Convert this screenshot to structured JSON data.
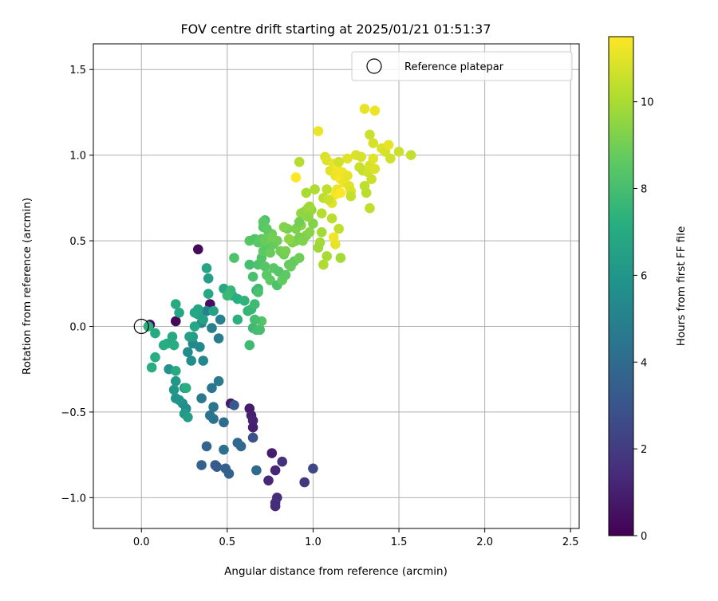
{
  "chart_data": {
    "type": "scatter",
    "title": "FOV centre drift starting at 2025/01/21 01:51:37",
    "xlabel": "Angular distance from reference (arcmin)",
    "ylabel": "Rotation from reference (arcmin)",
    "xlim": [
      -0.28,
      2.55
    ],
    "ylim": [
      -1.18,
      1.65
    ],
    "xticks": [
      0.0,
      0.5,
      1.0,
      1.5,
      2.0,
      2.5
    ],
    "xtick_labels": [
      "0.0",
      "0.5",
      "1.0",
      "1.5",
      "2.0",
      "2.5"
    ],
    "yticks": [
      -1.0,
      -0.5,
      0.0,
      0.5,
      1.0,
      1.5
    ],
    "ytick_labels": [
      "−1.0",
      "−0.5",
      "0.0",
      "0.5",
      "1.0",
      "1.5"
    ],
    "grid": true,
    "legend": {
      "placement": "top-right",
      "entries": [
        {
          "label": "Reference platepar",
          "marker": "open-circle"
        }
      ]
    },
    "colorbar": {
      "label": "Hours from first FF file",
      "colormap": "viridis",
      "range": [
        0,
        11.5
      ],
      "ticks": [
        0,
        2,
        4,
        6,
        8,
        10
      ],
      "tick_labels": [
        "0",
        "2",
        "4",
        "6",
        "8",
        "10"
      ]
    },
    "reference_point": {
      "x": 0.0,
      "y": 0.0
    },
    "series": [
      {
        "columns": [
          "x",
          "y",
          "hours"
        ],
        "points": [
          [
            0.2,
            0.03,
            0.2
          ],
          [
            0.33,
            0.45,
            0.3
          ],
          [
            0.4,
            0.13,
            0.5
          ],
          [
            0.05,
            0.01,
            0.4
          ],
          [
            0.52,
            -0.45,
            0.8
          ],
          [
            0.63,
            -0.48,
            0.9
          ],
          [
            0.64,
            -0.52,
            1.0
          ],
          [
            0.65,
            -0.55,
            1.1
          ],
          [
            0.65,
            -0.59,
            1.0
          ],
          [
            0.76,
            -0.74,
            0.9
          ],
          [
            0.78,
            -0.84,
            1.2
          ],
          [
            0.74,
            -0.9,
            1.3
          ],
          [
            0.79,
            -1.0,
            1.4
          ],
          [
            0.78,
            -1.03,
            1.5
          ],
          [
            0.78,
            -1.05,
            1.4
          ],
          [
            0.82,
            -0.79,
            1.6
          ],
          [
            0.95,
            -0.91,
            1.8
          ],
          [
            1.0,
            -0.83,
            2.5
          ],
          [
            0.65,
            -0.65,
            2.8
          ],
          [
            0.54,
            -0.46,
            3.2
          ],
          [
            0.51,
            -0.86,
            3.6
          ],
          [
            0.49,
            -0.83,
            3.5
          ],
          [
            0.43,
            -0.81,
            3.4
          ],
          [
            0.44,
            -0.82,
            3.3
          ],
          [
            0.35,
            -0.81,
            3.6
          ],
          [
            0.38,
            -0.7,
            3.7
          ],
          [
            0.56,
            -0.68,
            3.8
          ],
          [
            0.58,
            -0.7,
            3.9
          ],
          [
            0.67,
            -0.84,
            4.0
          ],
          [
            0.48,
            -0.72,
            4.2
          ],
          [
            0.48,
            -0.56,
            4.1
          ],
          [
            0.42,
            -0.54,
            4.3
          ],
          [
            0.4,
            -0.52,
            4.4
          ],
          [
            0.42,
            -0.47,
            4.5
          ],
          [
            0.35,
            -0.42,
            4.6
          ],
          [
            0.41,
            -0.36,
            4.5
          ],
          [
            0.45,
            -0.32,
            4.7
          ],
          [
            0.45,
            -0.07,
            4.8
          ],
          [
            0.46,
            0.04,
            4.9
          ],
          [
            0.41,
            -0.01,
            5.0
          ],
          [
            0.38,
            0.09,
            5.1
          ],
          [
            0.35,
            0.02,
            5.2
          ],
          [
            0.36,
            -0.2,
            5.3
          ],
          [
            0.34,
            -0.12,
            5.3
          ],
          [
            0.3,
            -0.1,
            5.4
          ],
          [
            0.27,
            -0.15,
            5.5
          ],
          [
            0.29,
            -0.2,
            5.6
          ],
          [
            0.26,
            -0.48,
            5.6
          ],
          [
            0.24,
            -0.45,
            5.7
          ],
          [
            0.2,
            -0.42,
            5.8
          ],
          [
            0.22,
            -0.43,
            5.9
          ],
          [
            0.16,
            -0.25,
            5.8
          ],
          [
            0.19,
            -0.37,
            6.0
          ],
          [
            0.2,
            -0.32,
            6.1
          ],
          [
            0.25,
            -0.51,
            6.2
          ],
          [
            0.27,
            -0.53,
            6.3
          ],
          [
            0.25,
            -0.36,
            6.2
          ],
          [
            0.3,
            -0.06,
            6.4
          ],
          [
            0.28,
            -0.06,
            6.5
          ],
          [
            0.33,
            0.07,
            6.6
          ],
          [
            0.36,
            0.04,
            6.5
          ],
          [
            0.33,
            0.1,
            6.7
          ],
          [
            0.31,
            0.08,
            6.8
          ],
          [
            0.31,
            0.0,
            6.8
          ],
          [
            0.39,
            0.28,
            6.4
          ],
          [
            0.38,
            0.34,
            6.7
          ],
          [
            0.39,
            0.19,
            6.9
          ],
          [
            0.42,
            0.09,
            6.6
          ],
          [
            0.22,
            0.08,
            6.8
          ],
          [
            0.2,
            0.13,
            7.0
          ],
          [
            0.18,
            -0.06,
            6.9
          ],
          [
            0.15,
            -0.1,
            7.0
          ],
          [
            0.19,
            -0.11,
            7.1
          ],
          [
            0.2,
            -0.26,
            7.0
          ],
          [
            0.13,
            -0.11,
            7.1
          ],
          [
            0.08,
            -0.04,
            7.0
          ],
          [
            0.08,
            -0.18,
            7.2
          ],
          [
            0.06,
            -0.24,
            7.1
          ],
          [
            0.04,
            0.0,
            7.3
          ],
          [
            0.26,
            -0.36,
            7.2
          ],
          [
            0.48,
            0.22,
            6.9
          ],
          [
            0.52,
            0.19,
            7.0
          ],
          [
            0.56,
            0.16,
            7.2
          ],
          [
            0.53,
            0.18,
            7.1
          ],
          [
            0.56,
            0.04,
            7.3
          ],
          [
            0.6,
            0.15,
            7.4
          ],
          [
            0.62,
            0.09,
            7.5
          ],
          [
            0.64,
            0.1,
            7.6
          ],
          [
            0.65,
            -0.01,
            7.7
          ],
          [
            0.63,
            -0.11,
            7.8
          ],
          [
            0.67,
            -0.02,
            7.9
          ],
          [
            0.69,
            -0.02,
            8.0
          ],
          [
            0.7,
            0.03,
            8.3
          ],
          [
            0.66,
            0.04,
            8.0
          ],
          [
            0.66,
            0.13,
            7.8
          ],
          [
            0.67,
            0.21,
            7.5
          ],
          [
            0.68,
            0.22,
            7.8
          ],
          [
            0.68,
            0.2,
            8.1
          ],
          [
            0.52,
            0.21,
            7.6
          ],
          [
            0.5,
            0.18,
            7.7
          ],
          [
            0.54,
            0.4,
            8.2
          ],
          [
            0.63,
            0.36,
            8.0
          ],
          [
            0.65,
            0.29,
            8.1
          ],
          [
            0.68,
            0.36,
            8.2
          ],
          [
            0.7,
            0.4,
            8.3
          ],
          [
            0.72,
            0.35,
            8.4
          ],
          [
            0.73,
            0.3,
            8.5
          ],
          [
            0.75,
            0.27,
            8.6
          ],
          [
            0.77,
            0.34,
            8.5
          ],
          [
            0.79,
            0.24,
            8.2
          ],
          [
            0.8,
            0.32,
            8.4
          ],
          [
            0.82,
            0.27,
            8.7
          ],
          [
            0.84,
            0.3,
            8.6
          ],
          [
            0.86,
            0.36,
            8.7
          ],
          [
            0.87,
            0.35,
            8.8
          ],
          [
            0.89,
            0.38,
            8.7
          ],
          [
            0.92,
            0.4,
            8.9
          ],
          [
            0.71,
            0.44,
            8.6
          ],
          [
            0.73,
            0.47,
            8.5
          ],
          [
            0.75,
            0.43,
            8.8
          ],
          [
            0.77,
            0.48,
            8.7
          ],
          [
            0.79,
            0.5,
            8.9
          ],
          [
            0.81,
            0.44,
            9.0
          ],
          [
            0.83,
            0.42,
            8.9
          ],
          [
            0.84,
            0.44,
            9.1
          ],
          [
            0.63,
            0.5,
            8.4
          ],
          [
            0.66,
            0.51,
            8.3
          ],
          [
            0.68,
            0.49,
            8.5
          ],
          [
            0.7,
            0.51,
            8.6
          ],
          [
            0.72,
            0.5,
            8.8
          ],
          [
            0.74,
            0.55,
            8.7
          ],
          [
            0.76,
            0.54,
            8.9
          ],
          [
            0.71,
            0.58,
            8.4
          ],
          [
            0.72,
            0.62,
            8.2
          ],
          [
            0.71,
            0.61,
            8.5
          ],
          [
            0.73,
            0.57,
            8.6
          ],
          [
            0.76,
            0.52,
            9.0
          ],
          [
            0.85,
            0.57,
            9.1
          ],
          [
            0.9,
            0.5,
            9.0
          ],
          [
            0.88,
            0.49,
            9.2
          ],
          [
            0.92,
            0.52,
            9.1
          ],
          [
            0.94,
            0.5,
            9.3
          ],
          [
            0.96,
            0.53,
            9.2
          ],
          [
            0.98,
            0.55,
            9.4
          ],
          [
            1.0,
            0.6,
            9.3
          ],
          [
            0.97,
            0.64,
            9.5
          ],
          [
            0.93,
            0.59,
            9.4
          ],
          [
            0.93,
            0.66,
            9.6
          ],
          [
            0.95,
            0.67,
            9.5
          ],
          [
            0.97,
            0.69,
            9.7
          ],
          [
            0.99,
            0.68,
            9.6
          ],
          [
            0.98,
            0.7,
            9.8
          ],
          [
            0.96,
            0.78,
            10.0
          ],
          [
            1.01,
            0.8,
            10.1
          ],
          [
            1.04,
            0.49,
            9.9
          ],
          [
            1.03,
            0.46,
            9.8
          ],
          [
            1.05,
            0.66,
            10.2
          ],
          [
            1.06,
            0.75,
            10.3
          ],
          [
            1.08,
            0.8,
            10.4
          ],
          [
            1.05,
            0.55,
            9.9
          ],
          [
            1.08,
            0.41,
            10.0
          ],
          [
            1.06,
            0.36,
            10.1
          ],
          [
            1.11,
            0.63,
            10.3
          ],
          [
            1.15,
            0.57,
            10.4
          ],
          [
            1.16,
            0.4,
            9.9
          ],
          [
            1.07,
            0.99,
            10.8
          ],
          [
            1.08,
            0.97,
            10.9
          ],
          [
            1.1,
            0.91,
            11.0
          ],
          [
            1.12,
            0.95,
            11.1
          ],
          [
            1.13,
            0.88,
            11.2
          ],
          [
            1.14,
            0.92,
            11.3
          ],
          [
            1.16,
            0.86,
            11.4
          ],
          [
            1.17,
            0.9,
            11.3
          ],
          [
            1.18,
            0.84,
            11.2
          ],
          [
            1.2,
            0.88,
            11.1
          ],
          [
            1.21,
            0.82,
            11.0
          ],
          [
            1.22,
            0.79,
            10.9
          ],
          [
            1.2,
            0.98,
            11.0
          ],
          [
            1.15,
            0.96,
            10.7
          ],
          [
            1.13,
            0.77,
            11.4
          ],
          [
            1.14,
            0.8,
            11.2
          ],
          [
            1.16,
            0.78,
            11.5
          ],
          [
            1.11,
            0.72,
            11.0
          ],
          [
            1.12,
            0.52,
            11.3
          ],
          [
            1.13,
            0.48,
            11.1
          ],
          [
            1.03,
            1.14,
            11.2
          ],
          [
            1.09,
            0.74,
            10.6
          ],
          [
            1.22,
            0.76,
            10.5
          ],
          [
            1.25,
            1.0,
            10.9
          ],
          [
            1.28,
            0.99,
            10.8
          ],
          [
            1.27,
            0.93,
            10.6
          ],
          [
            1.29,
            0.91,
            10.5
          ],
          [
            1.3,
            0.82,
            10.4
          ],
          [
            1.31,
            0.78,
            10.3
          ],
          [
            1.32,
            0.9,
            10.7
          ],
          [
            1.33,
            0.94,
            10.8
          ],
          [
            1.34,
            0.86,
            10.6
          ],
          [
            1.35,
            0.98,
            11.0
          ],
          [
            1.36,
            0.92,
            10.9
          ],
          [
            1.33,
            1.12,
            10.6
          ],
          [
            1.35,
            1.07,
            10.8
          ],
          [
            1.3,
            1.27,
            11.1
          ],
          [
            1.36,
            1.26,
            11.2
          ],
          [
            1.4,
            1.04,
            10.9
          ],
          [
            1.42,
            1.02,
            10.8
          ],
          [
            1.44,
            1.06,
            11.1
          ],
          [
            1.45,
            0.98,
            10.7
          ],
          [
            1.5,
            1.02,
            10.6
          ],
          [
            1.57,
            1.0,
            10.5
          ],
          [
            1.33,
            0.69,
            10.4
          ],
          [
            0.9,
            0.87,
            11.5
          ],
          [
            0.92,
            0.96,
            10.2
          ],
          [
            0.9,
            0.57,
            9.2
          ],
          [
            0.92,
            0.61,
            9.0
          ],
          [
            0.83,
            0.58,
            9.3
          ],
          [
            0.86,
            0.51,
            9.5
          ]
        ]
      }
    ]
  }
}
